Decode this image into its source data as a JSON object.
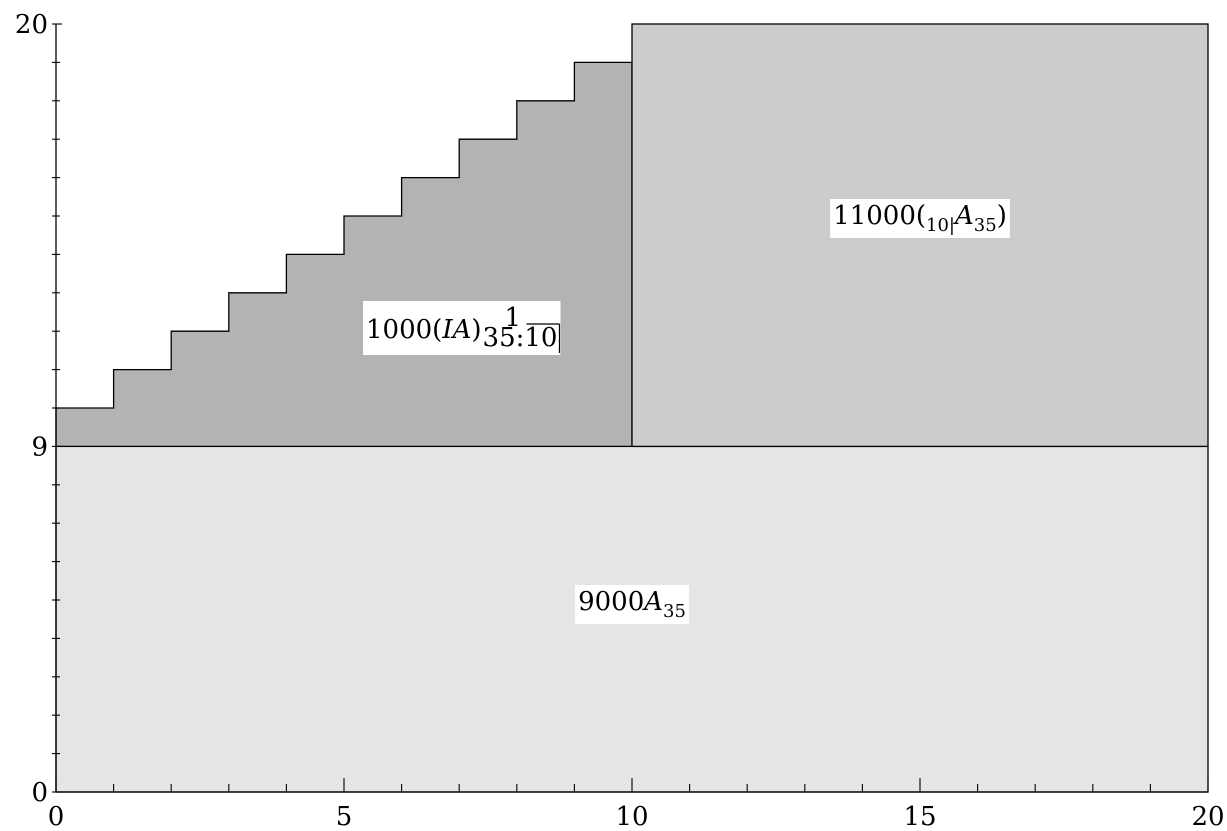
{
  "chart_data": {
    "type": "area",
    "title": "",
    "xlabel": "",
    "ylabel": "",
    "xlim": [
      0,
      20
    ],
    "ylim": [
      0,
      20
    ],
    "x_ticks_major": [
      0,
      5,
      10,
      15,
      20
    ],
    "x_tick_labels": [
      "0",
      "5",
      "10",
      "15",
      "20"
    ],
    "y_ticks_labeled": [
      0,
      9,
      20
    ],
    "y_tick_labels": [
      "0",
      "9",
      "20"
    ],
    "x_minor_step": 1,
    "y_minor_step": 1,
    "grid": false,
    "legend": "none",
    "regions": [
      {
        "id": "base",
        "label": {
          "number": "9000",
          "symbol": "A",
          "subscript": "35"
        },
        "x_range": [
          0,
          20
        ],
        "y_range": [
          0,
          9
        ],
        "color": "#e5e5e5"
      },
      {
        "id": "increasing",
        "label": {
          "number": "1000",
          "open": "(",
          "symbol": "IA",
          "close": ")",
          "superscript": "1",
          "subscript": "35:10",
          "overline_part": "10"
        },
        "shape": "staircase",
        "x_range": [
          0,
          10
        ],
        "base_y": 9,
        "step_tops": [
          10,
          11,
          12,
          13,
          14,
          15,
          16,
          17,
          18,
          19
        ],
        "color": "#b3b3b3"
      },
      {
        "id": "deferred",
        "label": {
          "number": "11000",
          "open": "(",
          "prefix_subscript": "10|",
          "symbol": "A",
          "subscript": "35",
          "close": ")"
        },
        "x_range": [
          10,
          20
        ],
        "y_range": [
          9,
          20
        ],
        "color": "#cccccc"
      }
    ]
  }
}
